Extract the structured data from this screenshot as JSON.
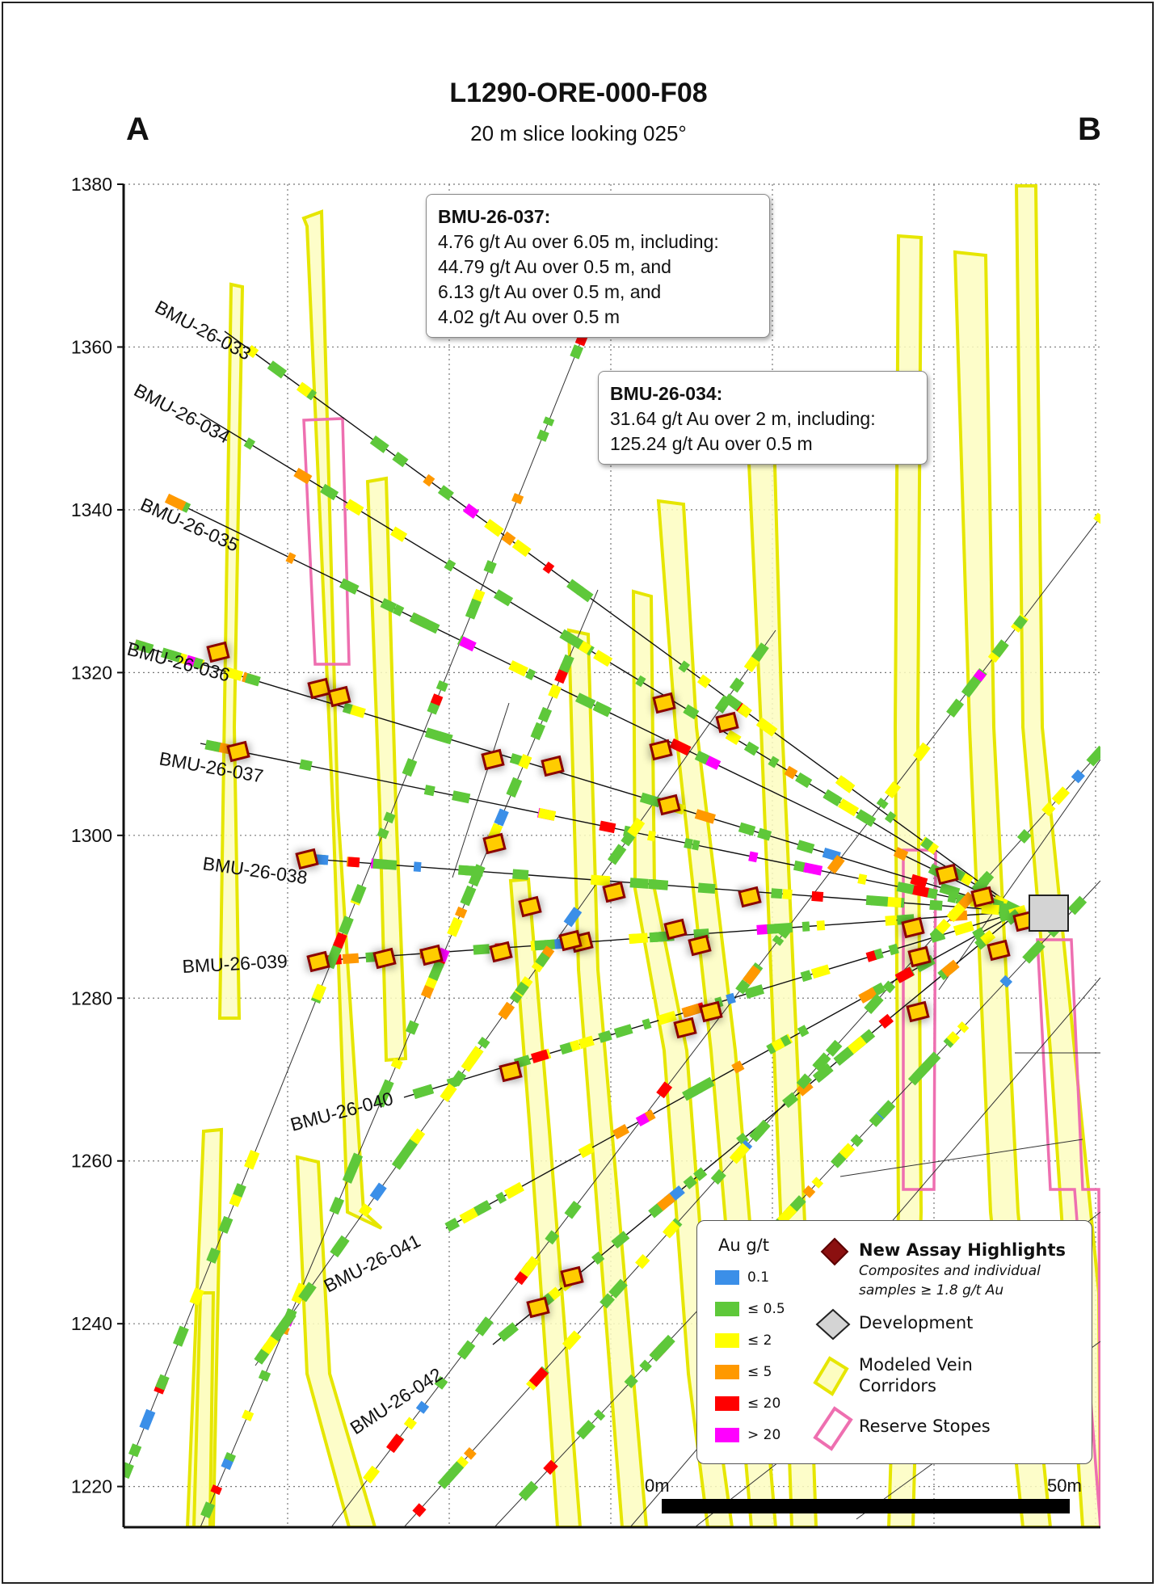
{
  "header": {
    "title": "L1290-ORE-000-F08",
    "subtitle": "20 m slice looking 025°",
    "corner_left": "A",
    "corner_right": "B"
  },
  "y_axis": {
    "ticks": [
      "1380",
      "1360",
      "1340",
      "1320",
      "1300",
      "1280",
      "1260",
      "1240",
      "1220"
    ],
    "min": 1215,
    "max": 1380
  },
  "drillholes": [
    {
      "id": "BMU-26-033"
    },
    {
      "id": "BMU-26-034"
    },
    {
      "id": "BMU-26-035"
    },
    {
      "id": "BMU-26-036"
    },
    {
      "id": "BMU-26-037"
    },
    {
      "id": "BMU-26-038"
    },
    {
      "id": "BMU-26-039"
    },
    {
      "id": "BMU-26-040"
    },
    {
      "id": "BMU-26-041"
    },
    {
      "id": "BMU-26-042"
    }
  ],
  "callouts": [
    {
      "hole": "BMU-26-037:",
      "lines": [
        "4.76 g/t Au over 6.05 m, including:",
        "44.79 g/t Au over 0.5 m, and",
        "6.13 g/t Au over 0.5 m, and",
        "4.02 g/t Au over 0.5 m"
      ]
    },
    {
      "hole": "BMU-26-034:",
      "lines": [
        "31.64 g/t Au over 2 m, including:",
        "125.24 g/t Au over 0.5 m"
      ]
    }
  ],
  "legend": {
    "grade_title": "Au g/t",
    "grades": [
      {
        "label": "0.1",
        "color": "#3b8fe8"
      },
      {
        "label": "≤ 0.5",
        "color": "#5ec83a"
      },
      {
        "label": "≤ 2",
        "color": "#ffff00"
      },
      {
        "label": "≤ 5",
        "color": "#ff9900"
      },
      {
        "label": "≤ 20",
        "color": "#ff0000"
      },
      {
        "label": "> 20",
        "color": "#ff00ff"
      }
    ],
    "highlight_label": "New Assay Highlights",
    "highlight_sub1": "Composites and individual",
    "highlight_sub2": "samples ≥ 1.8 g/t Au",
    "development_label": "Development",
    "vein_label1": "Modeled Vein",
    "vein_label2": "Corridors",
    "stope_label": "Reserve Stopes"
  },
  "scale": {
    "start": "0m",
    "end": "50m"
  },
  "colors": {
    "vein_fill": "#fdfdc0",
    "vein_stroke": "#e6e600",
    "stope": "#ee6fb0",
    "highlight": "#8b0000"
  }
}
